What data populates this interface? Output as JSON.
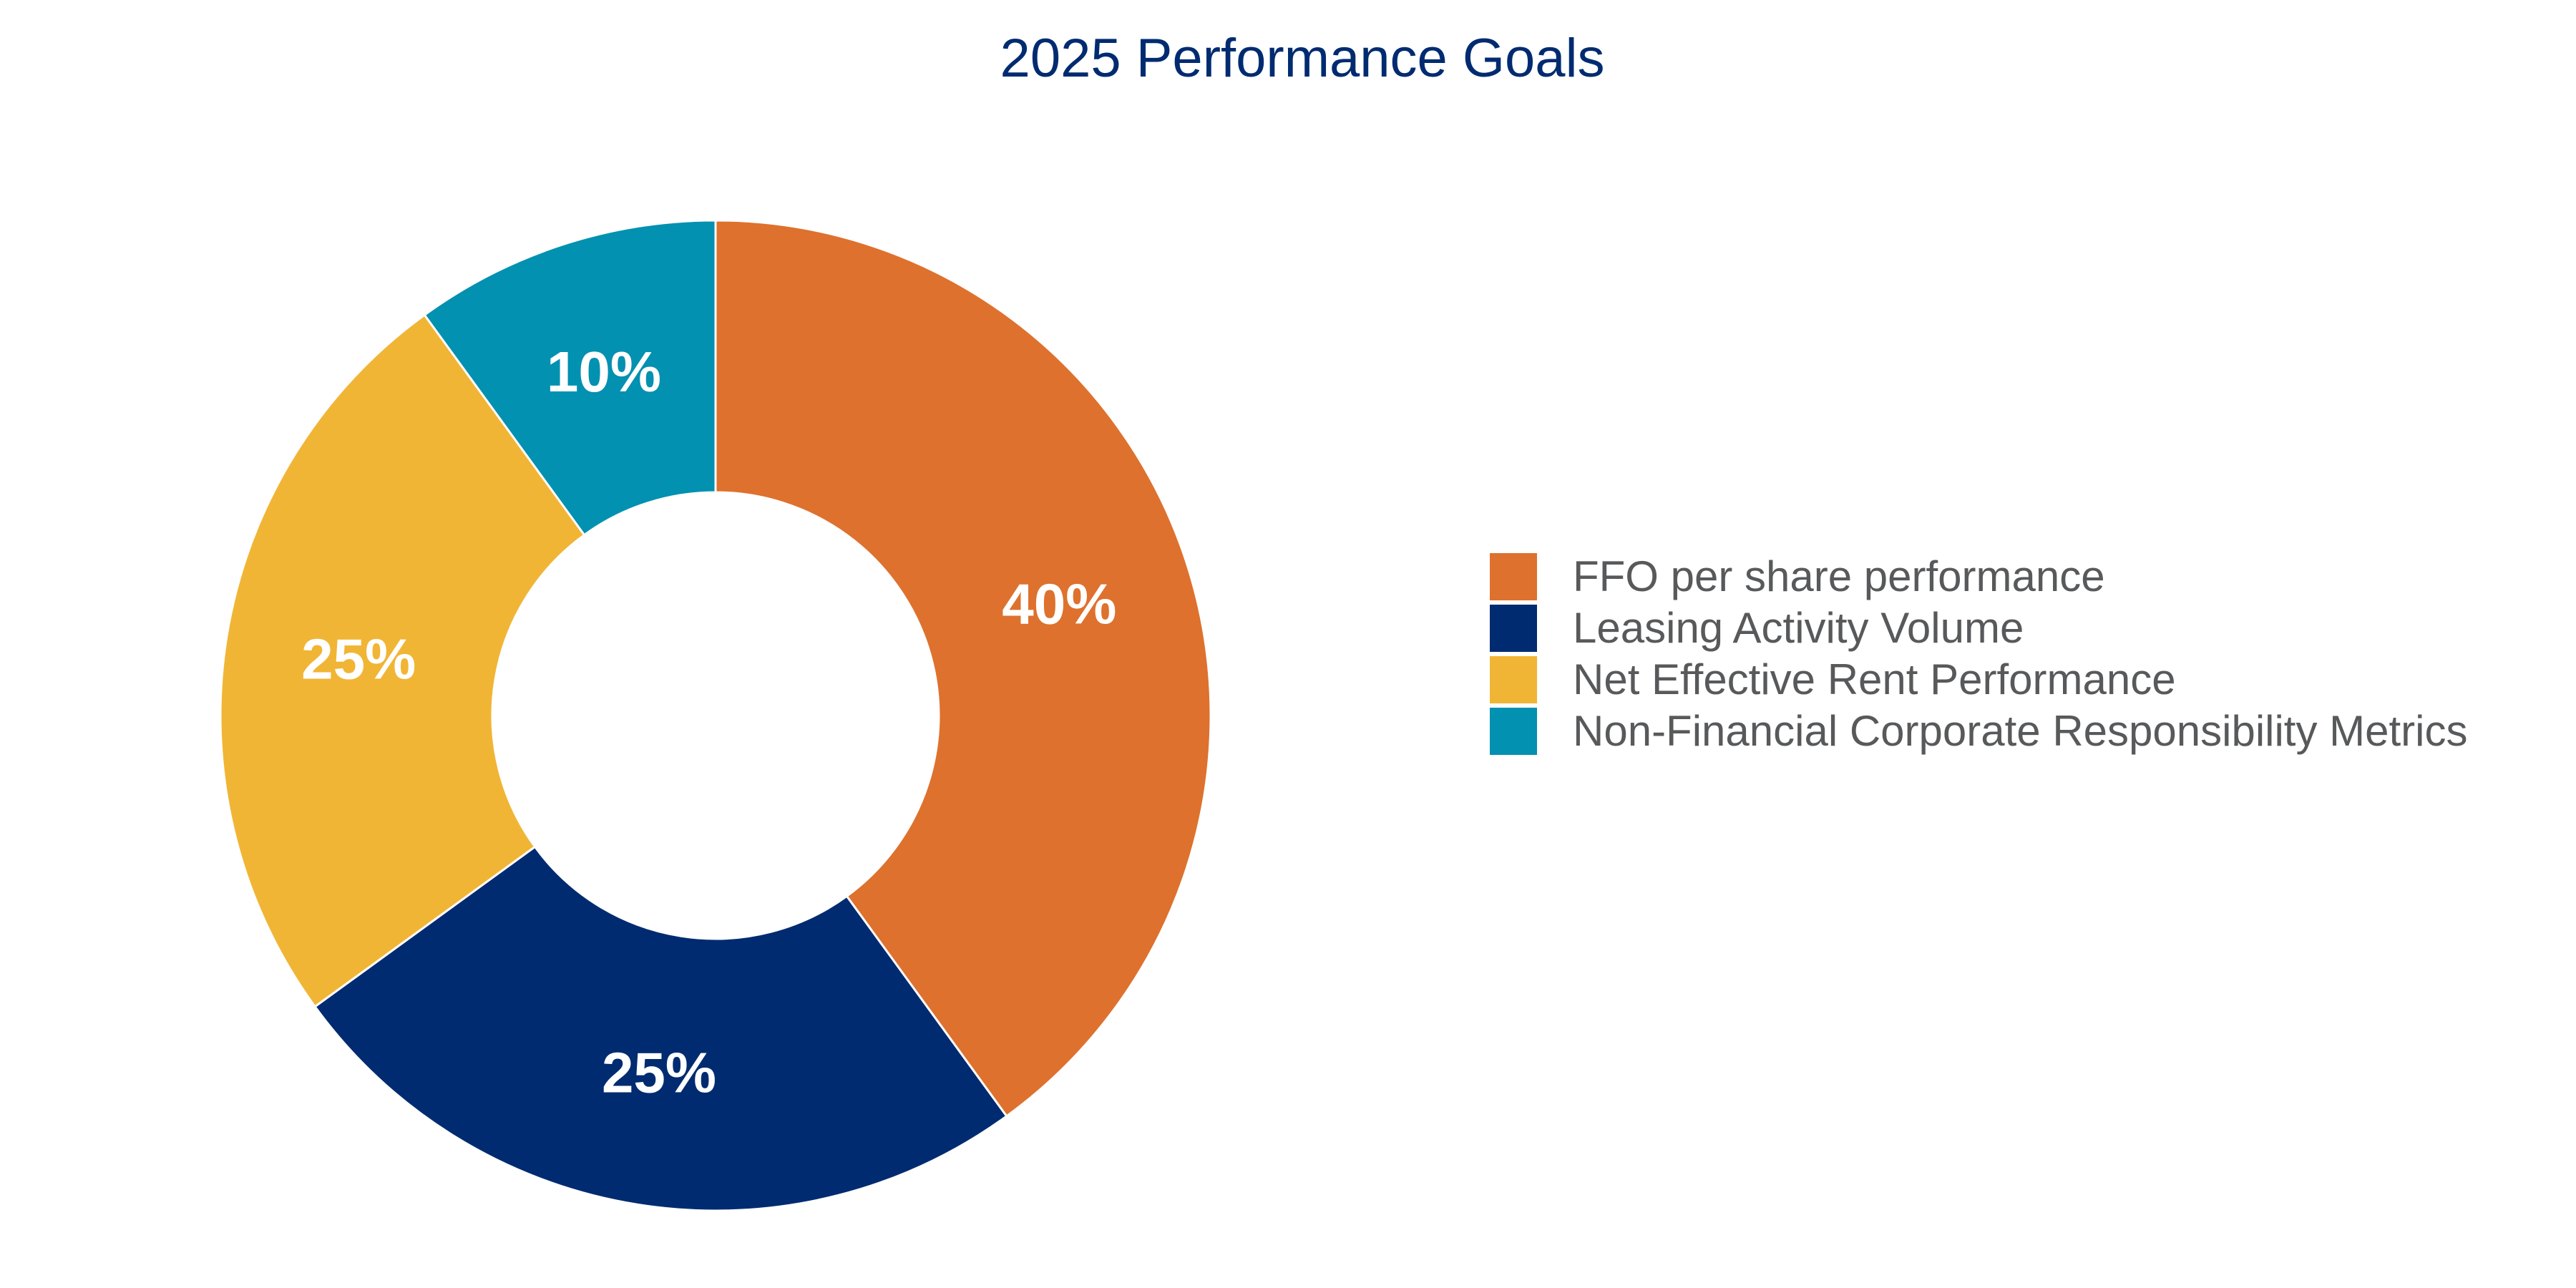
{
  "chart_data": {
    "type": "pie",
    "title": "2025 Performance Goals",
    "donut": true,
    "slices": [
      {
        "name": "FFO per share performance",
        "value": 40,
        "label": "40%",
        "color": "#de712d"
      },
      {
        "name": "Leasing Activity Volume",
        "value": 25,
        "label": "25%",
        "color": "#002b70"
      },
      {
        "name": "Net Effective Rent Performance",
        "value": 25,
        "label": "25%",
        "color": "#f1b535"
      },
      {
        "name": "Non-Financial Corporate Responsibility Metrics",
        "value": 10,
        "label": "10%",
        "color": "#0291b0"
      }
    ],
    "legend": "right",
    "grid": false
  }
}
